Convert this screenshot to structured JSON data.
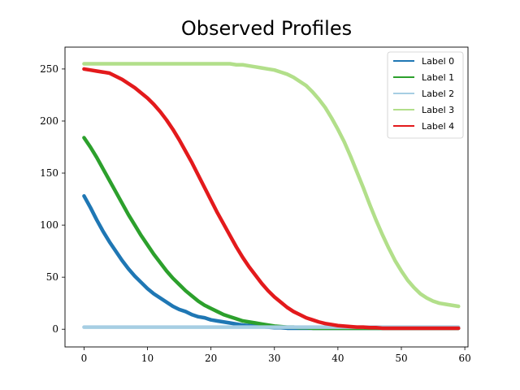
{
  "chart_data": {
    "type": "line",
    "title": "Observed Profiles",
    "xlabel": "",
    "ylabel": "",
    "xlim": [
      -3,
      60.5
    ],
    "ylim": [
      -17,
      271
    ],
    "xticks": [
      0,
      10,
      20,
      30,
      40,
      50,
      60
    ],
    "yticks": [
      0,
      50,
      100,
      150,
      200,
      250
    ],
    "grid": false,
    "legend_position": "top-right",
    "x": [
      0,
      1,
      2,
      3,
      4,
      5,
      6,
      7,
      8,
      9,
      10,
      11,
      12,
      13,
      14,
      15,
      16,
      17,
      18,
      19,
      20,
      21,
      22,
      23,
      24,
      25,
      26,
      27,
      28,
      29,
      30,
      31,
      32,
      33,
      34,
      35,
      36,
      37,
      38,
      39,
      40,
      41,
      42,
      43,
      44,
      45,
      46,
      47,
      48,
      49,
      50,
      51,
      52,
      53,
      54,
      55,
      56,
      57,
      58,
      59
    ],
    "series": [
      {
        "name": "Label 0",
        "color": "#1f77b4",
        "values": [
          128,
          117,
          105,
          94,
          84,
          75,
          66,
          58,
          51,
          45,
          39,
          34,
          30,
          26,
          22,
          19,
          17,
          14,
          12,
          11,
          9,
          8,
          7,
          6,
          5,
          4,
          3.5,
          3,
          2.5,
          2,
          1.5,
          1.5,
          1,
          1,
          1,
          1,
          1,
          1,
          1,
          1,
          1,
          1,
          1,
          1,
          1,
          1,
          1,
          1,
          1,
          1,
          1,
          1,
          1,
          1,
          1,
          1,
          1,
          1,
          1,
          1
        ]
      },
      {
        "name": "Label 1",
        "color": "#2ca02c",
        "values": [
          184,
          175,
          165,
          154,
          143,
          132,
          121,
          110,
          100,
          90,
          81,
          72,
          64,
          56,
          49,
          43,
          37,
          32,
          27,
          23,
          20,
          17,
          14,
          12,
          10,
          8,
          7,
          6,
          5,
          4,
          3,
          2.5,
          2,
          2,
          1.5,
          1.5,
          1,
          1,
          1,
          1,
          1,
          1,
          1,
          1,
          1,
          1,
          1,
          1,
          1,
          1,
          1,
          1,
          1,
          1,
          1,
          1,
          1,
          1,
          1,
          1
        ]
      },
      {
        "name": "Label 2",
        "color": "#a6cee3",
        "values": [
          2,
          2,
          2,
          2,
          2,
          2,
          2,
          2,
          2,
          2,
          2,
          2,
          2,
          2,
          2,
          2,
          2,
          2,
          2,
          2,
          2,
          2,
          2,
          2,
          2,
          2,
          2,
          2,
          2,
          2,
          2,
          2,
          2,
          2,
          2,
          2,
          2,
          2,
          2,
          2,
          2,
          2,
          2,
          2,
          2,
          2,
          2,
          2,
          2,
          2,
          2,
          2,
          2,
          2,
          2,
          2,
          2,
          2,
          2,
          2
        ]
      },
      {
        "name": "Label 3",
        "color": "#b2df8a",
        "values": [
          255,
          255,
          255,
          255,
          255,
          255,
          255,
          255,
          255,
          255,
          255,
          255,
          255,
          255,
          255,
          255,
          255,
          255,
          255,
          255,
          255,
          255,
          255,
          255,
          254,
          254,
          253,
          252,
          251,
          250,
          249,
          247,
          245,
          242,
          238,
          234,
          228,
          221,
          213,
          203,
          192,
          180,
          166,
          151,
          136,
          120,
          105,
          91,
          78,
          66,
          56,
          47,
          40,
          34,
          30,
          27,
          25,
          24,
          23,
          22
        ]
      },
      {
        "name": "Label 4",
        "color": "#e31a1c",
        "values": [
          250,
          249,
          248,
          247,
          246,
          243,
          240,
          236,
          232,
          227,
          222,
          216,
          209,
          201,
          192,
          182,
          171,
          160,
          148,
          136,
          124,
          112,
          101,
          90,
          79,
          69,
          60,
          52,
          44,
          37,
          31,
          26,
          21,
          17,
          14,
          11,
          9,
          7,
          5.5,
          4.5,
          3.5,
          3,
          2.5,
          2,
          2,
          1.5,
          1.5,
          1,
          1,
          1,
          1,
          1,
          1,
          1,
          1,
          1,
          1,
          1,
          1,
          1
        ]
      }
    ]
  }
}
